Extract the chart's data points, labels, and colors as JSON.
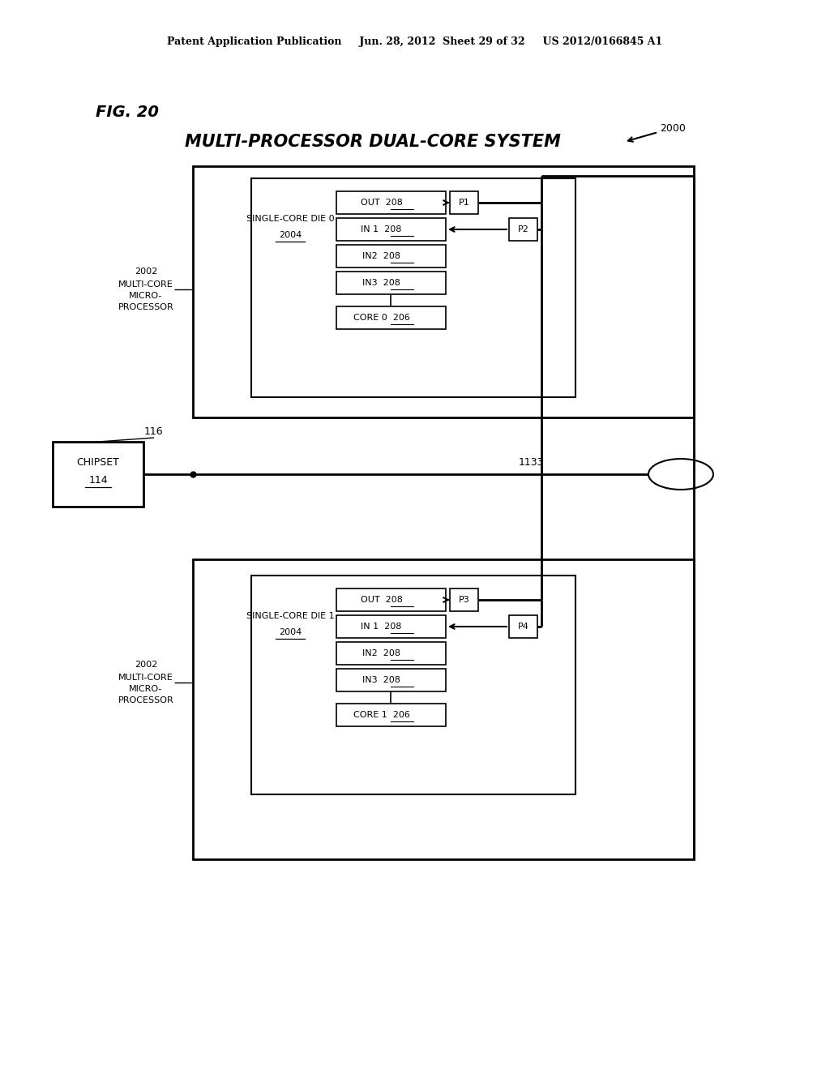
{
  "bg_color": "#ffffff",
  "header_line1": "Patent Application Publication",
  "header_line2": "Jun. 28, 2012  Sheet 29 of 32",
  "header_line3": "US 2012/0166845 A1",
  "fig_label": "FIG. 20",
  "title": "MULTI-PROCESSOR DUAL-CORE SYSTEM",
  "ref_2000": "2000",
  "ref_116": "116",
  "ref_1133": "1133",
  "ref_2002": "2002",
  "multicore_label": "MULTI-CORE\nMICRO-\nPROCESSOR",
  "die0_line1": "SINGLE-CORE DIE 0",
  "die0_line2": "2004",
  "die1_line1": "SINGLE-CORE DIE 1",
  "die1_line2": "2004",
  "chipset_line1": "CHIPSET",
  "chipset_line2": "114"
}
